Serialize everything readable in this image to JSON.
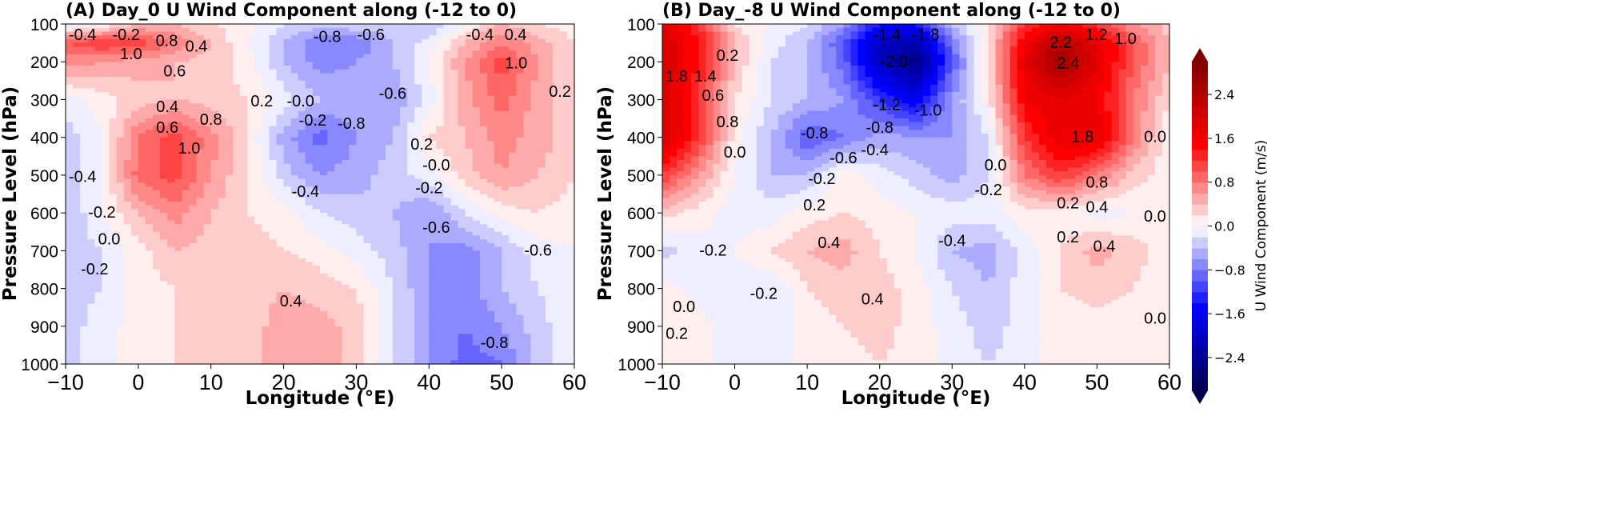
{
  "chart_data": [
    {
      "type": "heatmap",
      "subtype": "filled-contour",
      "title": "(A) Day_0 U Wind Component along (-12 to 0)",
      "xlabel": "Longitude (°E)",
      "ylabel": "Pressure Level (hPa)",
      "xlim": [
        -10,
        60
      ],
      "ylim": [
        1000,
        100
      ],
      "xticks": [
        "-10",
        "0",
        "10",
        "20",
        "30",
        "40",
        "50",
        "60"
      ],
      "yticks": [
        "100",
        "200",
        "300",
        "400",
        "500",
        "600",
        "700",
        "800",
        "900",
        "1000"
      ],
      "x": [
        -10,
        -5,
        0,
        5,
        10,
        15,
        20,
        25,
        30,
        35,
        40,
        45,
        50,
        55,
        60
      ],
      "y": [
        100,
        150,
        200,
        300,
        400,
        500,
        600,
        700,
        800,
        900,
        1000
      ],
      "z": [
        [
          -0.2,
          0.0,
          0.4,
          0.4,
          0.2,
          0.1,
          -0.2,
          -0.3,
          -0.2,
          -0.3,
          -0.4,
          0.0,
          0.4,
          0.2,
          0.1
        ],
        [
          1.0,
          1.2,
          1.1,
          0.8,
          0.4,
          0.0,
          -0.4,
          -0.8,
          -0.8,
          -0.4,
          -0.1,
          0.4,
          0.8,
          0.5,
          0.2
        ],
        [
          0.7,
          0.6,
          0.5,
          0.4,
          0.3,
          0.1,
          -0.4,
          -0.7,
          -0.6,
          -0.4,
          0.0,
          0.6,
          1.1,
          0.6,
          0.2
        ],
        [
          -0.1,
          0.1,
          0.3,
          0.4,
          0.3,
          0.2,
          -0.1,
          -0.4,
          -0.5,
          -0.6,
          -0.1,
          0.5,
          0.9,
          0.5,
          0.2
        ],
        [
          -0.3,
          0.0,
          0.8,
          1.1,
          0.7,
          0.2,
          -0.5,
          -0.9,
          -0.6,
          -0.4,
          0.2,
          0.4,
          0.7,
          0.5,
          0.3
        ],
        [
          -0.4,
          0.0,
          0.9,
          1.1,
          0.6,
          0.2,
          -0.3,
          -0.6,
          -0.5,
          -0.3,
          -0.1,
          0.3,
          0.6,
          0.4,
          0.2
        ],
        [
          -0.4,
          0.0,
          0.4,
          0.7,
          0.4,
          0.2,
          0.1,
          -0.2,
          -0.3,
          -0.4,
          -0.6,
          -0.2,
          0.1,
          0.2,
          0.1
        ],
        [
          -0.3,
          -0.2,
          0.1,
          0.4,
          0.3,
          0.3,
          0.2,
          0.1,
          -0.1,
          -0.3,
          -0.6,
          -0.7,
          -0.4,
          -0.1,
          0.0
        ],
        [
          -0.3,
          -0.2,
          0.1,
          0.2,
          0.3,
          0.3,
          0.4,
          0.3,
          0.2,
          -0.2,
          -0.6,
          -0.7,
          -0.4,
          -0.2,
          0.0
        ],
        [
          -0.3,
          -0.1,
          0.1,
          0.2,
          0.2,
          0.3,
          0.5,
          0.5,
          0.3,
          -0.2,
          -0.6,
          -0.8,
          -0.6,
          -0.3,
          0.0
        ],
        [
          -0.3,
          -0.1,
          0.1,
          0.2,
          0.2,
          0.3,
          0.5,
          0.5,
          0.3,
          -0.2,
          -0.6,
          -0.9,
          -0.8,
          -0.3,
          0.0
        ]
      ],
      "contour_labels": [
        {
          "lon": -8,
          "p": 115,
          "text": "-0.4"
        },
        {
          "lon": -4,
          "p": 120,
          "text": "-0.2"
        },
        {
          "lon": -1,
          "p": 150,
          "text": "1.0"
        },
        {
          "lon": 2,
          "p": 145,
          "text": "0.8"
        },
        {
          "lon": 5,
          "p": 165,
          "text": "0.6"
        },
        {
          "lon": 8,
          "p": 160,
          "text": "0.4"
        },
        {
          "lon": 26,
          "p": 135,
          "text": "-0.8"
        },
        {
          "lon": 32,
          "p": 130,
          "text": "-0.6"
        },
        {
          "lon": 47,
          "p": 100,
          "text": "-0.4"
        },
        {
          "lon": 50,
          "p": 120,
          "text": "0.4"
        },
        {
          "lon": 52,
          "p": 205,
          "text": "1.0"
        },
        {
          "lon": 59,
          "p": 280,
          "text": "0.2"
        },
        {
          "lon": 4,
          "p": 320,
          "text": "0.4"
        },
        {
          "lon": 4,
          "p": 345,
          "text": "0.6"
        },
        {
          "lon": 7,
          "p": 400,
          "text": "1.0"
        },
        {
          "lon": 10,
          "p": 385,
          "text": "0.8"
        },
        {
          "lon": 17,
          "p": 305,
          "text": "0.2"
        },
        {
          "lon": 20,
          "p": 305,
          "text": "-0.0"
        },
        {
          "lon": 24,
          "p": 295,
          "text": "-0.2"
        },
        {
          "lon": 35,
          "p": 285,
          "text": "-0.6"
        },
        {
          "lon": 27,
          "p": 365,
          "text": "-0.8"
        },
        {
          "lon": 39,
          "p": 420,
          "text": "0.2"
        },
        {
          "lon": 40,
          "p": 535,
          "text": "-0.2"
        },
        {
          "lon": 41,
          "p": 505,
          "text": "-0.0"
        },
        {
          "lon": 23,
          "p": 545,
          "text": "-0.4"
        },
        {
          "lon": 41,
          "p": 640,
          "text": "-0.6"
        },
        {
          "lon": 55,
          "p": 700,
          "text": "-0.6"
        },
        {
          "lon": -9,
          "p": 505,
          "text": "-0.4"
        },
        {
          "lon": -5,
          "p": 600,
          "text": "-0.2"
        },
        {
          "lon": -4,
          "p": 610,
          "text": "0.0"
        },
        {
          "lon": -6,
          "p": 720,
          "text": "-0.2"
        },
        {
          "lon": 21,
          "p": 835,
          "text": "0.4"
        },
        {
          "lon": 49,
          "p": 945,
          "text": "-0.8"
        }
      ]
    },
    {
      "type": "heatmap",
      "subtype": "filled-contour",
      "title": "(B) Day_-8 U Wind Component along (-12 to 0)",
      "xlabel": "Longitude (°E)",
      "ylabel": "Pressure Level (hPa)",
      "xlim": [
        -10,
        60
      ],
      "ylim": [
        1000,
        100
      ],
      "xticks": [
        "-10",
        "0",
        "10",
        "20",
        "30",
        "40",
        "50",
        "60"
      ],
      "yticks": [
        "100",
        "200",
        "300",
        "400",
        "500",
        "600",
        "700",
        "800",
        "900",
        "1000"
      ],
      "x": [
        -10,
        -5,
        0,
        5,
        10,
        15,
        20,
        25,
        30,
        35,
        40,
        45,
        50,
        55,
        60
      ],
      "y": [
        100,
        150,
        200,
        300,
        400,
        500,
        600,
        700,
        800,
        900,
        1000
      ],
      "z": [
        [
          1.8,
          1.2,
          0.2,
          0.0,
          -0.2,
          -0.6,
          -1.4,
          -1.4,
          -0.4,
          0.2,
          1.2,
          1.6,
          1.2,
          0.6,
          0.3
        ],
        [
          2.0,
          1.4,
          0.4,
          -0.1,
          -0.4,
          -1.0,
          -2.0,
          -2.2,
          -0.8,
          0.2,
          1.6,
          2.4,
          1.8,
          1.0,
          0.4
        ],
        [
          2.0,
          1.4,
          0.4,
          -0.2,
          -0.4,
          -0.9,
          -2.0,
          -2.6,
          -1.0,
          0.2,
          1.8,
          2.6,
          1.8,
          1.0,
          0.4
        ],
        [
          2.0,
          1.2,
          0.2,
          -0.2,
          -0.4,
          -0.6,
          -1.2,
          -1.6,
          -0.6,
          0.1,
          1.6,
          1.8,
          1.6,
          0.8,
          0.2
        ],
        [
          2.0,
          1.2,
          0.1,
          -0.4,
          -1.0,
          -0.8,
          -0.5,
          -0.6,
          -0.6,
          -0.2,
          1.2,
          1.8,
          1.8,
          0.8,
          0.0
        ],
        [
          1.2,
          0.6,
          0.0,
          -0.4,
          -0.4,
          0.1,
          -0.1,
          -0.3,
          -0.5,
          -0.2,
          0.8,
          1.2,
          0.8,
          0.3,
          0.1
        ],
        [
          0.3,
          0.1,
          -0.1,
          -0.1,
          0.1,
          0.2,
          0.1,
          0.0,
          -0.1,
          -0.1,
          0.1,
          0.1,
          -0.1,
          0.0,
          0.1
        ],
        [
          -0.3,
          -0.1,
          0.0,
          0.2,
          0.4,
          0.5,
          0.2,
          0.0,
          -0.4,
          -0.5,
          -0.1,
          0.2,
          0.5,
          0.3,
          0.1
        ],
        [
          0.1,
          -0.1,
          -0.1,
          -0.2,
          0.2,
          0.3,
          0.3,
          0.1,
          -0.2,
          -0.4,
          -0.1,
          0.2,
          0.3,
          0.2,
          0.0
        ],
        [
          0.2,
          0.1,
          -0.2,
          -0.2,
          0.1,
          0.2,
          0.3,
          0.1,
          -0.1,
          -0.3,
          -0.1,
          0.1,
          0.1,
          0.1,
          0.0
        ],
        [
          0.1,
          0.1,
          -0.1,
          -0.1,
          0.1,
          0.1,
          0.2,
          0.1,
          -0.1,
          -0.2,
          -0.1,
          0.1,
          0.1,
          0.1,
          0.0
        ]
      ],
      "contour_labels": [
        {
          "lon": 21,
          "p": 105,
          "text": "-1.4"
        },
        {
          "lon": 22,
          "p": 140,
          "text": "-2.0"
        },
        {
          "lon": 24,
          "p": 130,
          "text": "-1.8"
        },
        {
          "lon": -9,
          "p": 240,
          "text": "1.8"
        },
        {
          "lon": -6,
          "p": 240,
          "text": "1.4"
        },
        {
          "lon": -3,
          "p": 230,
          "text": "0.6"
        },
        {
          "lon": -1,
          "p": 215,
          "text": "0.2"
        },
        {
          "lon": -1,
          "p": 330,
          "text": "0.8"
        },
        {
          "lon": 0,
          "p": 380,
          "text": "0.0"
        },
        {
          "lon": 45,
          "p": 150,
          "text": "2.2"
        },
        {
          "lon": 48,
          "p": 130,
          "text": "1.2"
        },
        {
          "lon": 52,
          "p": 140,
          "text": "1.0"
        },
        {
          "lon": 46,
          "p": 205,
          "text": "2.4"
        },
        {
          "lon": 48,
          "p": 400,
          "text": "1.8"
        },
        {
          "lon": 21,
          "p": 315,
          "text": "-1.2"
        },
        {
          "lon": 20,
          "p": 345,
          "text": "-0.8"
        },
        {
          "lon": 22,
          "p": 330,
          "text": "-1.0"
        },
        {
          "lon": 11,
          "p": 390,
          "text": "-0.8"
        },
        {
          "lon": 15,
          "p": 425,
          "text": "-0.6"
        },
        {
          "lon": 17,
          "p": 435,
          "text": "-0.4"
        },
        {
          "lon": 12,
          "p": 480,
          "text": "-0.2"
        },
        {
          "lon": 11,
          "p": 520,
          "text": "0.2"
        },
        {
          "lon": 35,
          "p": 540,
          "text": "-0.2"
        },
        {
          "lon": 36,
          "p": 505,
          "text": "0.0"
        },
        {
          "lon": 50,
          "p": 520,
          "text": "0.8"
        },
        {
          "lon": 50,
          "p": 555,
          "text": "0.4"
        },
        {
          "lon": 46,
          "p": 575,
          "text": "0.2"
        },
        {
          "lon": 58,
          "p": 610,
          "text": "0.0"
        },
        {
          "lon": 59,
          "p": 400,
          "text": "0.0"
        },
        {
          "lon": 30,
          "p": 675,
          "text": "-0.4"
        },
        {
          "lon": 13,
          "p": 680,
          "text": "0.4"
        },
        {
          "lon": -3,
          "p": 700,
          "text": "-0.2"
        },
        {
          "lon": 46,
          "p": 665,
          "text": "0.2"
        },
        {
          "lon": 51,
          "p": 690,
          "text": "0.4"
        },
        {
          "lon": -7,
          "p": 850,
          "text": "0.0"
        },
        {
          "lon": -8,
          "p": 860,
          "text": "0.2"
        },
        {
          "lon": 4,
          "p": 815,
          "text": "-0.2"
        },
        {
          "lon": 19,
          "p": 830,
          "text": "0.4"
        },
        {
          "lon": 59,
          "p": 880,
          "text": "0.0"
        }
      ]
    }
  ],
  "colorbar": {
    "label": "U Wind Component (m/s)",
    "colormap": "seismic",
    "vmin": -3.0,
    "vmax": 3.0,
    "level_step": 0.2,
    "extend": "both",
    "ticks": [
      "2.4",
      "1.6",
      "0.8",
      "0.0",
      "−0.8",
      "−1.6",
      "−2.4"
    ],
    "tick_values": [
      2.4,
      1.6,
      0.8,
      0.0,
      -0.8,
      -1.6,
      -2.4
    ]
  }
}
